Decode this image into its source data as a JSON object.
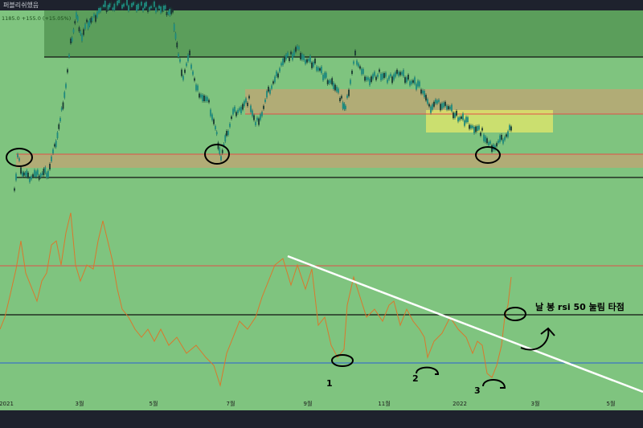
{
  "header": {
    "title": "퍼블리쉬했음",
    "price_info": "1185.0  +155.0 (+15.05%)"
  },
  "chart_data": [
    {
      "type": "candlestick",
      "panel": "price",
      "x_ticks": [
        "2021",
        "3월",
        "5월",
        "7월",
        "9월",
        "11월",
        "2022",
        "3월",
        "5월"
      ],
      "zones": [
        {
          "color": "#4e8f4e",
          "meaning": "top resistance box"
        },
        {
          "color": "#c5a273",
          "meaning": "upper supply zone"
        },
        {
          "color": "#c5a273",
          "meaning": "lower support zone"
        },
        {
          "color": "#e4e86a",
          "meaning": "recent consolidation box"
        }
      ],
      "marked_pivots": 3
    },
    {
      "type": "line",
      "panel": "rsi",
      "series_color": "#d9782c",
      "level_lines": [
        {
          "color": "#e0504a",
          "meaning": "upper level"
        },
        {
          "color": "#111111",
          "meaning": "rsi 50"
        },
        {
          "color": "#2b5fd6",
          "meaning": "lower level"
        }
      ],
      "annotations": [
        {
          "text": "1"
        },
        {
          "text": "2"
        },
        {
          "text": "3"
        },
        {
          "text": "날 봉 rsi 50 눌림 타점"
        }
      ]
    }
  ]
}
